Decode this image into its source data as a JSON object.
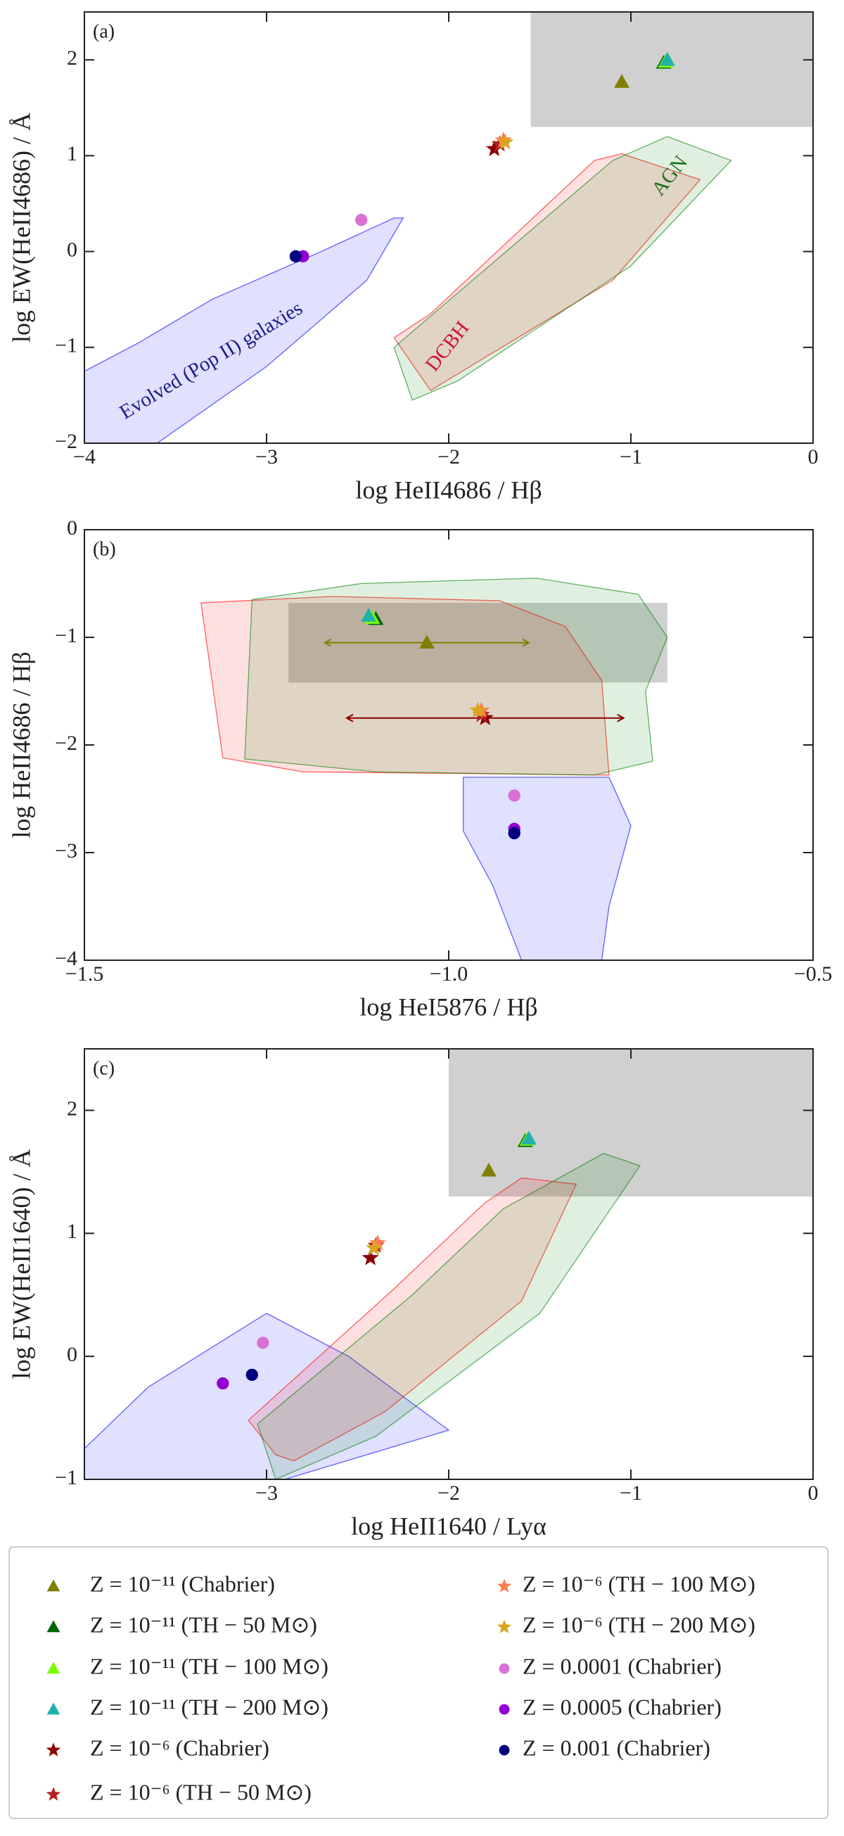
{
  "chart_data": [
    {
      "type": "scatter",
      "panel_label": "(a)",
      "x_label": "log HeII4686 / Hβ",
      "y_label": "log EW(HeII4686) / Å",
      "xlim": [
        -4,
        0
      ],
      "ylim": [
        -2,
        2.5
      ],
      "xticks": [
        {
          "value": -4,
          "label": "−4"
        },
        {
          "value": -3,
          "label": "−3"
        },
        {
          "value": -2,
          "label": "−2"
        },
        {
          "value": -1,
          "label": "−1"
        },
        0
      ],
      "yticks": [
        {
          "value": -2,
          "label": "−2"
        },
        {
          "value": -1,
          "label": "−1"
        },
        0,
        1,
        2
      ],
      "shade": {
        "x": [
          -1.55,
          0
        ],
        "y": [
          1.3,
          2.5
        ]
      },
      "regions": [
        {
          "color": "blue",
          "label": "Evolved (Pop II) galaxies",
          "label_color": "#1c1c8a",
          "x": [
            -4,
            -3.7,
            -3.3,
            -2.7,
            -2.3,
            -2.25,
            -2.45,
            -3.0,
            -3.6,
            -4
          ],
          "y": [
            -1.25,
            -0.95,
            -0.5,
            0,
            0.35,
            0.35,
            -0.3,
            -1.2,
            -2.0,
            -2.0
          ]
        },
        {
          "color": "red",
          "label": "DCBH",
          "label_color": "#d0103a",
          "x": [
            -2.3,
            -2.1,
            -1.2,
            -1.05,
            -0.62,
            -1.1,
            -2.1
          ],
          "y": [
            -0.9,
            -0.65,
            0.95,
            1.02,
            0.75,
            -0.3,
            -1.45
          ]
        },
        {
          "color": "green",
          "label": "AGN",
          "label_color": "#1f6e1f",
          "x": [
            -2.3,
            -1.1,
            -0.8,
            -0.45,
            -1.0,
            -1.95,
            -2.2
          ],
          "y": [
            -1.0,
            0.95,
            1.2,
            0.95,
            -0.15,
            -1.35,
            -1.55
          ]
        }
      ],
      "series": [
        {
          "x": -1.05,
          "y": 1.77
        },
        {
          "x": -0.82,
          "y": 1.97
        },
        {
          "x": -0.81,
          "y": 1.98
        },
        {
          "x": -0.8,
          "y": 2.0
        },
        {
          "x": -1.75,
          "y": 1.07
        },
        {
          "x": -1.72,
          "y": 1.12
        },
        {
          "x": -1.7,
          "y": 1.16
        },
        {
          "x": -1.69,
          "y": 1.14
        },
        {
          "x": -2.48,
          "y": 0.33
        },
        {
          "x": -2.8,
          "y": -0.05
        },
        {
          "x": -2.84,
          "y": -0.05
        }
      ]
    },
    {
      "type": "scatter",
      "panel_label": "(b)",
      "x_label": "log HeI5876 / Hβ",
      "y_label": "log HeII4686 / Hβ",
      "xlim": [
        -1.5,
        -0.5
      ],
      "ylim": [
        -4,
        0
      ],
      "xticks": [
        {
          "value": -1.5,
          "label": "−1.5"
        },
        {
          "value": -1.0,
          "label": "−1.0"
        },
        {
          "value": -0.5,
          "label": "−0.5"
        }
      ],
      "yticks": [
        {
          "value": -4,
          "label": "−4"
        },
        {
          "value": -3,
          "label": "−3"
        },
        {
          "value": -2,
          "label": "−2"
        },
        {
          "value": -1,
          "label": "−1"
        },
        0
      ],
      "shade": {
        "x": [
          -1.22,
          -0.7
        ],
        "y": [
          -1.42,
          -0.68
        ]
      },
      "regions": [
        {
          "color": "red",
          "x": [
            -1.34,
            -1.16,
            -0.93,
            -0.84,
            -0.79,
            -0.78,
            -1.2,
            -1.31
          ],
          "y": [
            -0.68,
            -0.62,
            -0.66,
            -0.9,
            -1.4,
            -2.28,
            -2.25,
            -2.12
          ]
        },
        {
          "color": "green",
          "x": [
            -1.27,
            -1.12,
            -0.88,
            -0.74,
            -0.7,
            -0.73,
            -0.72,
            -0.8,
            -1.1,
            -1.28
          ],
          "y": [
            -0.65,
            -0.5,
            -0.45,
            -0.6,
            -1.0,
            -1.5,
            -2.15,
            -2.28,
            -2.25,
            -2.13
          ]
        },
        {
          "color": "blue",
          "x": [
            -0.98,
            -0.78,
            -0.75,
            -0.78,
            -0.79,
            -0.9,
            -0.94,
            -0.98
          ],
          "y": [
            -2.3,
            -2.3,
            -2.75,
            -3.5,
            -4.0,
            -4.0,
            -3.3,
            -2.8
          ]
        }
      ],
      "series": [
        {
          "x": -1.03,
          "y": -1.05,
          "xerr": 0.14
        },
        {
          "x": -1.1,
          "y": -0.83
        },
        {
          "x": -1.105,
          "y": -0.82
        },
        {
          "x": -1.11,
          "y": -0.8
        },
        {
          "x": -0.95,
          "y": -1.75,
          "xerr": 0.19
        },
        {
          "x": -0.955,
          "y": -1.72
        },
        {
          "x": -0.955,
          "y": -1.68
        },
        {
          "x": -0.96,
          "y": -1.68
        },
        {
          "x": -0.91,
          "y": -2.47
        },
        {
          "x": -0.91,
          "y": -2.78
        },
        {
          "x": -0.91,
          "y": -2.82
        }
      ]
    },
    {
      "type": "scatter",
      "panel_label": "(c)",
      "x_label": "log HeII1640 / Lyα",
      "y_label": "log EW(HeII1640) / Å",
      "xlim": [
        -4,
        0
      ],
      "ylim": [
        -1,
        2.5
      ],
      "xticks": [
        {
          "value": -3,
          "label": "−3"
        },
        {
          "value": -2,
          "label": "−2"
        },
        {
          "value": -1,
          "label": "−1"
        },
        0
      ],
      "yticks": [
        {
          "value": -1,
          "label": "−1"
        },
        0,
        1,
        2
      ],
      "shade": {
        "x": [
          -2,
          0
        ],
        "y": [
          1.3,
          2.5
        ]
      },
      "regions": [
        {
          "color": "blue",
          "x": [
            -4,
            -3.65,
            -3.0,
            -2.55,
            -2.0,
            -2.9,
            -4
          ],
          "y": [
            -0.75,
            -0.25,
            0.35,
            0.0,
            -0.6,
            -1.0,
            -1.0
          ]
        },
        {
          "color": "red",
          "x": [
            -3.1,
            -2.3,
            -1.8,
            -1.6,
            -1.3,
            -1.6,
            -2.35,
            -2.85,
            -2.95
          ],
          "y": [
            -0.52,
            0.55,
            1.25,
            1.45,
            1.4,
            0.45,
            -0.45,
            -0.85,
            -0.8
          ]
        },
        {
          "color": "green",
          "x": [
            -3.05,
            -2.2,
            -1.7,
            -1.15,
            -0.95,
            -1.5,
            -2.4,
            -2.95
          ],
          "y": [
            -0.55,
            0.5,
            1.2,
            1.65,
            1.55,
            0.35,
            -0.65,
            -1.0
          ]
        }
      ],
      "series": [
        {
          "x": -1.78,
          "y": 1.51
        },
        {
          "x": -1.58,
          "y": 1.75
        },
        {
          "x": -1.57,
          "y": 1.76
        },
        {
          "x": -1.56,
          "y": 1.77
        },
        {
          "x": -2.43,
          "y": 0.8
        },
        {
          "x": -2.4,
          "y": 0.9
        },
        {
          "x": -2.39,
          "y": 0.92
        },
        {
          "x": -2.41,
          "y": 0.88
        },
        {
          "x": -3.02,
          "y": 0.11
        },
        {
          "x": -3.24,
          "y": -0.22
        },
        {
          "x": -3.08,
          "y": -0.15
        }
      ]
    }
  ],
  "legend": [
    {
      "name": "Z = 10⁻¹¹ (Chabrier)",
      "color": "#808000",
      "marker": "triangle"
    },
    {
      "name": "Z = 10⁻¹¹ (TH − 50 M⊙)",
      "color": "#006400",
      "marker": "triangle"
    },
    {
      "name": "Z = 10⁻¹¹ (TH − 100 M⊙)",
      "color": "#7cfc00",
      "marker": "triangle"
    },
    {
      "name": "Z = 10⁻¹¹ (TH − 200 M⊙)",
      "color": "#20b2aa",
      "marker": "triangle"
    },
    {
      "name": "Z = 10⁻⁶ (Chabrier)",
      "color": "#8b0000",
      "marker": "star"
    },
    {
      "name": "Z = 10⁻⁶ (TH − 50 M⊙)",
      "color": "#b22222",
      "marker": "star"
    },
    {
      "name": "Z = 10⁻⁶ (TH − 100 M⊙)",
      "color": "#ff7f50",
      "marker": "star"
    },
    {
      "name": "Z = 10⁻⁶ (TH − 200 M⊙)",
      "color": "#daa520",
      "marker": "star"
    },
    {
      "name": "Z = 0.0001 (Chabrier)",
      "color": "#da70d6",
      "marker": "circle"
    },
    {
      "name": "Z = 0.0005 (Chabrier)",
      "color": "#9400d3",
      "marker": "circle"
    },
    {
      "name": "Z = 0.001 (Chabrier)",
      "color": "#000080",
      "marker": "circle"
    }
  ]
}
